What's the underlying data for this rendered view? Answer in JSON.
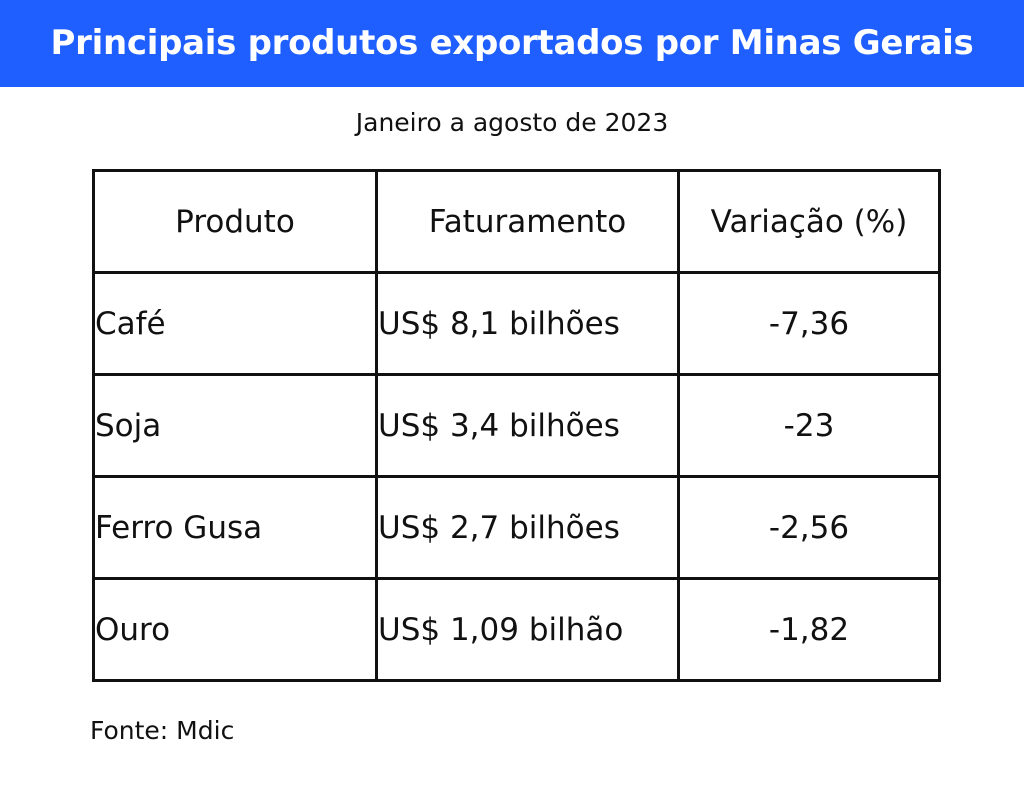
{
  "title": "Principais produtos exportados por Minas Gerais",
  "subtitle": "Janeiro a agosto de 2023",
  "source": "Fonte: Mdic",
  "colors": {
    "banner": "#1f5fff",
    "banner_text": "#ffffff",
    "border": "#111111"
  },
  "chart_data": {
    "type": "table",
    "columns": [
      "Produto",
      "Faturamento",
      "Variação (%)"
    ],
    "rows": [
      [
        "Café",
        "US$ 8,1 bilhões",
        "-7,36"
      ],
      [
        "Soja",
        "US$ 3,4 bilhões",
        "-23"
      ],
      [
        "Ferro Gusa",
        "US$ 2,7 bilhões",
        "-2,56"
      ],
      [
        "Ouro",
        "US$ 1,09 bilhão",
        "-1,82"
      ]
    ]
  }
}
